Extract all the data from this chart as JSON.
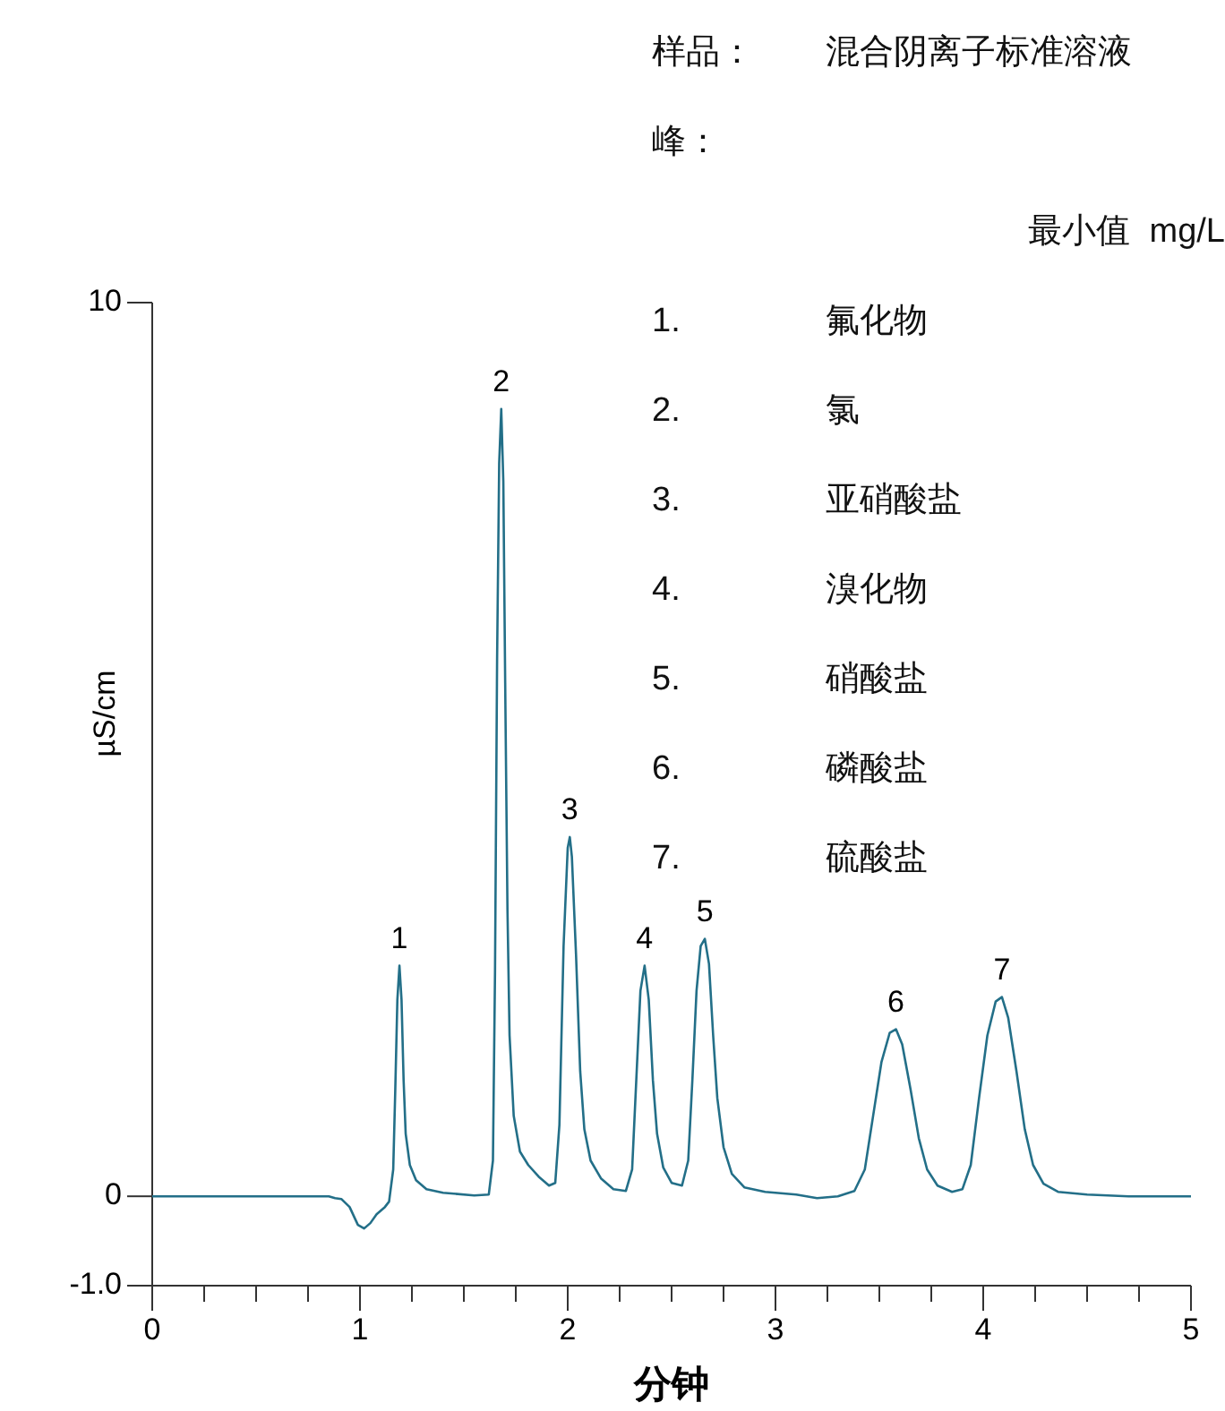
{
  "chart_data": {
    "type": "line",
    "xlabel": "分钟",
    "ylabel": "µS/cm",
    "xlim": [
      0,
      5
    ],
    "ylim": [
      -1,
      10
    ],
    "xticks": [
      0,
      {
        "value": 0.25,
        "label": null
      },
      {
        "value": 0.5,
        "label": null
      },
      {
        "value": 0.75,
        "label": null
      },
      1,
      {
        "value": 1.25,
        "label": null
      },
      {
        "value": 1.5,
        "label": null
      },
      {
        "value": 1.75,
        "label": null
      },
      2,
      {
        "value": 2.25,
        "label": null
      },
      {
        "value": 2.5,
        "label": null
      },
      {
        "value": 2.75,
        "label": null
      },
      3,
      {
        "value": 3.25,
        "label": null
      },
      {
        "value": 3.5,
        "label": null
      },
      {
        "value": 3.75,
        "label": null
      },
      4,
      {
        "value": 4.25,
        "label": null
      },
      {
        "value": 4.5,
        "label": null
      },
      {
        "value": 4.75,
        "label": null
      },
      5
    ],
    "yticks": [
      {
        "value": -1,
        "label": "-1.0"
      },
      0,
      10
    ],
    "grid": false,
    "marker": "none",
    "line_style": "solid",
    "series": [
      {
        "color": "#236f88",
        "x": [
          0,
          0.5,
          0.85,
          0.88,
          0.91,
          0.95,
          0.99,
          1.02,
          1.05,
          1.08,
          1.12,
          1.14,
          1.16,
          1.17,
          1.18,
          1.19,
          1.2,
          1.21,
          1.22,
          1.24,
          1.27,
          1.32,
          1.4,
          1.55,
          1.62,
          1.64,
          1.65,
          1.66,
          1.67,
          1.68,
          1.69,
          1.7,
          1.71,
          1.72,
          1.74,
          1.77,
          1.81,
          1.86,
          1.91,
          1.94,
          1.96,
          1.98,
          2.0,
          2.01,
          2.02,
          2.04,
          2.06,
          2.08,
          2.11,
          2.16,
          2.22,
          2.28,
          2.31,
          2.33,
          2.35,
          2.37,
          2.39,
          2.41,
          2.43,
          2.46,
          2.5,
          2.55,
          2.58,
          2.6,
          2.62,
          2.64,
          2.66,
          2.68,
          2.7,
          2.72,
          2.75,
          2.79,
          2.85,
          2.95,
          3.1,
          3.2,
          3.3,
          3.38,
          3.43,
          3.47,
          3.51,
          3.55,
          3.58,
          3.61,
          3.65,
          3.69,
          3.73,
          3.78,
          3.85,
          3.9,
          3.94,
          3.98,
          4.02,
          4.06,
          4.09,
          4.12,
          4.16,
          4.2,
          4.24,
          4.29,
          4.36,
          4.5,
          4.7,
          5.0
        ],
        "values": [
          0,
          0,
          0,
          -0.02,
          -0.03,
          -0.12,
          -0.32,
          -0.36,
          -0.3,
          -0.2,
          -0.12,
          -0.06,
          0.3,
          1.2,
          2.2,
          2.58,
          2.2,
          1.3,
          0.7,
          0.35,
          0.18,
          0.08,
          0.04,
          0.01,
          0.02,
          0.4,
          2.5,
          6,
          8.2,
          8.81,
          8,
          5.5,
          3.2,
          1.8,
          0.9,
          0.5,
          0.35,
          0.22,
          0.12,
          0.15,
          0.8,
          2.8,
          3.9,
          4.02,
          3.8,
          2.7,
          1.4,
          0.75,
          0.4,
          0.2,
          0.08,
          0.06,
          0.3,
          1.3,
          2.3,
          2.58,
          2.2,
          1.3,
          0.7,
          0.32,
          0.15,
          0.12,
          0.4,
          1.3,
          2.3,
          2.8,
          2.88,
          2.6,
          1.8,
          1.1,
          0.55,
          0.25,
          0.1,
          0.05,
          0.02,
          -0.02,
          0,
          0.06,
          0.3,
          0.9,
          1.5,
          1.83,
          1.87,
          1.7,
          1.2,
          0.65,
          0.3,
          0.12,
          0.05,
          0.08,
          0.35,
          1.1,
          1.8,
          2.18,
          2.23,
          2.0,
          1.4,
          0.75,
          0.35,
          0.14,
          0.05,
          0.02,
          0,
          0
        ]
      }
    ],
    "annotations": [
      {
        "text": "1",
        "x": 1.19,
        "y": 2.58
      },
      {
        "text": "2",
        "x": 1.68,
        "y": 8.81
      },
      {
        "text": "3",
        "x": 2.01,
        "y": 4.02
      },
      {
        "text": "4",
        "x": 2.37,
        "y": 2.58
      },
      {
        "text": "5",
        "x": 2.66,
        "y": 2.88
      },
      {
        "text": "6",
        "x": 3.58,
        "y": 1.87
      },
      {
        "text": "7",
        "x": 4.09,
        "y": 2.23
      },
      "样品：",
      "混合阴离子标准溶液",
      "峰：",
      "最小值  mg/L",
      "1.",
      "氟化物",
      "2.",
      "氯",
      "3.",
      "亚硝酸盐",
      "4.",
      "溴化物",
      "5.",
      "硝酸盐",
      "6.",
      "磷酸盐",
      "7.",
      "硫酸盐"
    ]
  }
}
